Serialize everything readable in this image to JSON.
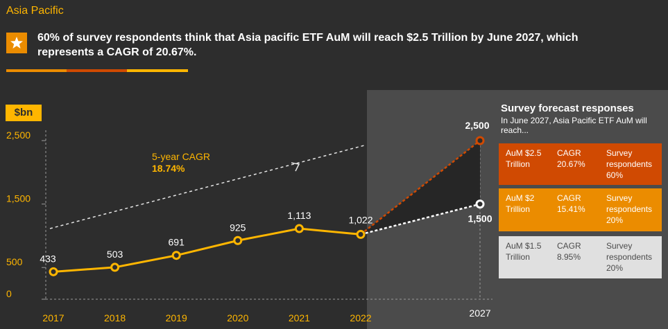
{
  "header": {
    "region": "Asia Pacific",
    "headline": "60% of survey respondents think that Asia pacific ETF AuM will reach $2.5 Trillion by June 2027, which represents a CAGR of 20.67%."
  },
  "colors": {
    "background": "#2d2d2d",
    "forecast_panel": "#4b4b4b",
    "line": "#ffb600",
    "high_scenario": "#d04a02",
    "mid_scenario": "#eb8c00",
    "low_scenario": "#e0e0e0",
    "axis_text": "#ffb600",
    "label_text": "#ffffff"
  },
  "chart_data": {
    "type": "line",
    "unit_label": "$bn",
    "categories": [
      "2017",
      "2018",
      "2019",
      "2020",
      "2021",
      "2022"
    ],
    "values": [
      433,
      503,
      691,
      925,
      1113,
      1022
    ],
    "value_labels": [
      "433",
      "503",
      "691",
      "925",
      "1,113",
      "1,022"
    ],
    "ylim": [
      0,
      2500
    ],
    "yticks": [
      0,
      500,
      1500,
      2500
    ],
    "ytick_labels": [
      "0",
      "500",
      "1,500",
      "2,500"
    ],
    "forecast": {
      "year": "2027",
      "high": 2500,
      "high_label": "2,500",
      "low": 1500,
      "low_label": "1,500"
    },
    "cagr_annotation": {
      "label": "5-year CAGR",
      "value": "18.74%"
    }
  },
  "survey": {
    "title": "Survey forecast responses",
    "subtitle": "In June 2027, Asia Pacific ETF AuM will reach...",
    "rows": [
      {
        "aum": "AuM $2.5 Trillion",
        "cagr": "CAGR 20.67%",
        "respondents": "Survey respondents 60%",
        "bg": "#d04a02",
        "fg": "#ffffff"
      },
      {
        "aum": "AuM $2 Trillion",
        "cagr": "CAGR 15.41%",
        "respondents": "Survey respondents 20%",
        "bg": "#eb8c00",
        "fg": "#ffffff"
      },
      {
        "aum": "AuM $1.5 Trillion",
        "cagr": "CAGR 8.95%",
        "respondents": "Survey respondents 20%",
        "bg": "#e0e0e0",
        "fg": "#4b4b4b"
      }
    ]
  }
}
